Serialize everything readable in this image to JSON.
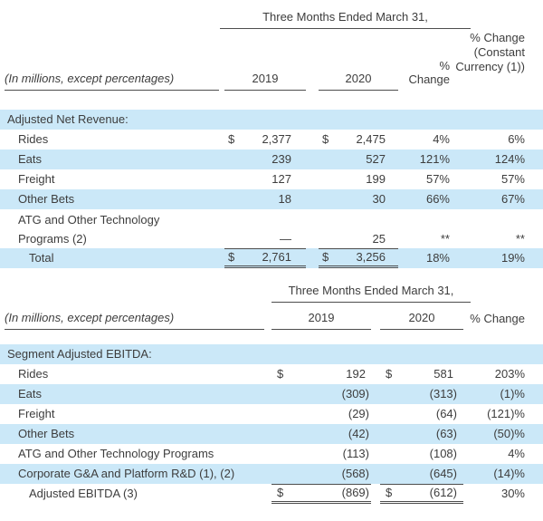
{
  "colors": {
    "stripe": "#cbe8f8",
    "text": "#3d3d3d",
    "rule": "#4d4d4d"
  },
  "table1": {
    "period_header": "Three Months Ended March 31,",
    "row_label_header": "(In millions, except percentages)",
    "col_2019": "2019",
    "col_2020": "2020",
    "col_change": "% Change",
    "col_change_cc_line1": "% Change",
    "col_change_cc_line2": "(Constant",
    "col_change_cc_line3": "Currency (1))",
    "section_title": "Adjusted Net Revenue:",
    "rows": [
      {
        "label": "Rides",
        "cur_2019": "$",
        "val_2019": "2,377",
        "cur_2020": "$",
        "val_2020": "2,475",
        "change": "4%",
        "change_cc": "6%"
      },
      {
        "label": "Eats",
        "cur_2019": "",
        "val_2019": "239",
        "cur_2020": "",
        "val_2020": "527",
        "change": "121%",
        "change_cc": "124%"
      },
      {
        "label": "Freight",
        "cur_2019": "",
        "val_2019": "127",
        "cur_2020": "",
        "val_2020": "199",
        "change": "57%",
        "change_cc": "57%"
      },
      {
        "label": "Other Bets",
        "cur_2019": "",
        "val_2019": "18",
        "cur_2020": "",
        "val_2020": "30",
        "change": "66%",
        "change_cc": "67%"
      },
      {
        "label": "ATG and Other Technology",
        "label_line2": "Programs (2)",
        "cur_2019": "",
        "val_2019": "—",
        "cur_2020": "",
        "val_2020": "25",
        "change": "**",
        "change_cc": "**"
      },
      {
        "label": "Total",
        "cur_2019": "$",
        "val_2019": "2,761",
        "cur_2020": "$",
        "val_2020": "3,256",
        "change": "18%",
        "change_cc": "19%"
      }
    ]
  },
  "table2": {
    "period_header": "Three Months Ended March 31,",
    "row_label_header": "(In millions, except percentages)",
    "col_2019": "2019",
    "col_2020": "2020",
    "col_change": "% Change",
    "section_title": "Segment Adjusted EBITDA:",
    "rows": [
      {
        "label": "Rides",
        "cur_2019": "$",
        "val_2019": "192",
        "cur_2020": "$",
        "val_2020": "581",
        "change": "203%"
      },
      {
        "label": "Eats",
        "cur_2019": "",
        "val_2019": "(309)",
        "cur_2020": "",
        "val_2020": "(313)",
        "change": "(1)%"
      },
      {
        "label": "Freight",
        "cur_2019": "",
        "val_2019": "(29)",
        "cur_2020": "",
        "val_2020": "(64)",
        "change": "(121)%"
      },
      {
        "label": "Other Bets",
        "cur_2019": "",
        "val_2019": "(42)",
        "cur_2020": "",
        "val_2020": "(63)",
        "change": "(50)%"
      },
      {
        "label": "ATG and Other Technology Programs",
        "cur_2019": "",
        "val_2019": "(113)",
        "cur_2020": "",
        "val_2020": "(108)",
        "change": "4%"
      },
      {
        "label": "Corporate G&A and Platform R&D (1), (2)",
        "cur_2019": "",
        "val_2019": "(568)",
        "cur_2020": "",
        "val_2020": "(645)",
        "change": "(14)%"
      },
      {
        "label": "Adjusted EBITDA (3)",
        "cur_2019": "$",
        "val_2019": "(869)",
        "cur_2020": "$",
        "val_2020": "(612)",
        "change": "30%"
      }
    ]
  }
}
